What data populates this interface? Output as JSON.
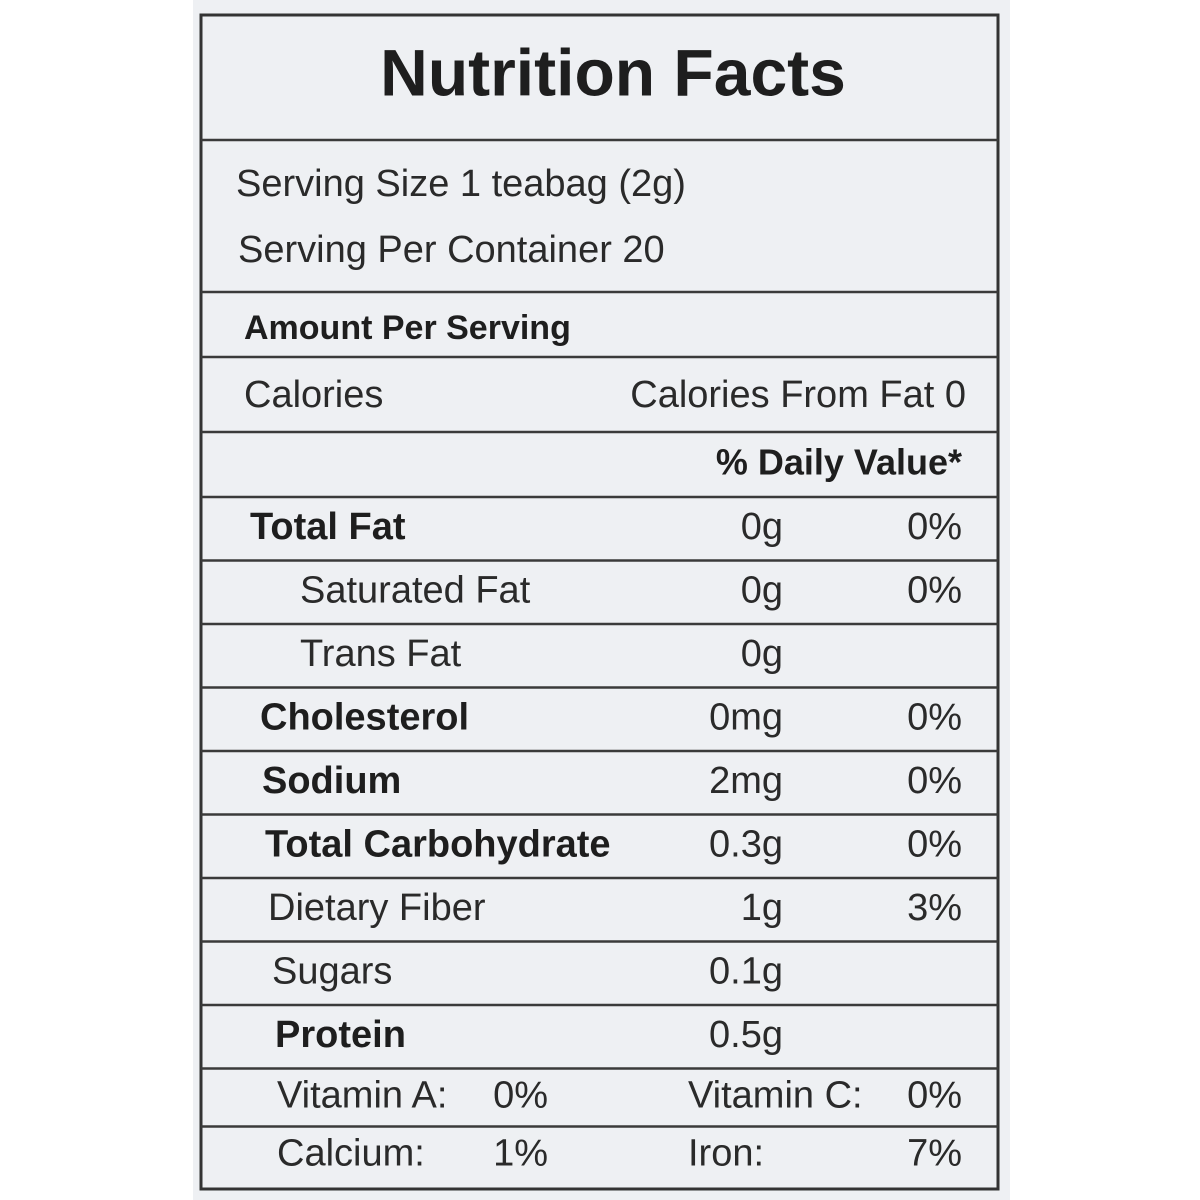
{
  "title": "Nutrition Facts",
  "serving_size": "Serving Size 1 teabag (2g)",
  "servings_per_container": "Serving Per Container 20",
  "amount_per_serving": "Amount Per Serving",
  "calories": "Calories",
  "calories_from_fat": "Calories From Fat 0",
  "daily_value_header": "% Daily Value*",
  "nutrients": [
    {
      "name": "Total Fat",
      "amount": "0g",
      "daily_value": "0%"
    },
    {
      "name": "Saturated Fat",
      "amount": "0g",
      "daily_value": "0%"
    },
    {
      "name": "Trans Fat",
      "amount": "0g"
    },
    {
      "name": "Cholesterol",
      "amount": "0mg",
      "daily_value": "0%"
    },
    {
      "name": "Sodium",
      "amount": "2mg",
      "daily_value": "0%"
    },
    {
      "name": "Total Carbohydrate",
      "amount": "0.3g",
      "daily_value": "0%"
    },
    {
      "name": "Dietary Fiber",
      "amount": "1g",
      "daily_value": "3%"
    },
    {
      "name": "Sugars",
      "amount": "0.1g"
    },
    {
      "name": "Protein",
      "amount": "0.5g"
    }
  ],
  "vitamins": [
    [
      {
        "name": "Vitamin A:",
        "value": "0%"
      },
      {
        "name": "Vitamin C:",
        "value": "0%"
      }
    ],
    [
      {
        "name": "Calcium:",
        "value": "1%"
      },
      {
        "name": "Iron:",
        "value": "7%"
      }
    ]
  ]
}
